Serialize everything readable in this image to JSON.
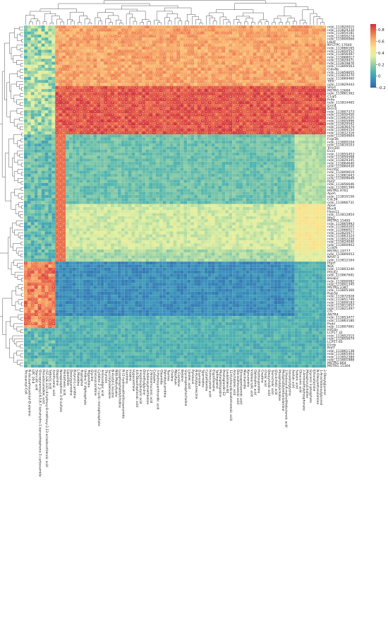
{
  "chart_data": {
    "type": "heatmap",
    "title": "",
    "xlabel": "",
    "ylabel": "",
    "colorbar": {
      "ticks": [
        0.8,
        0.6,
        0.4,
        0.2,
        0,
        -0.2
      ],
      "range": [
        -0.2,
        0.9
      ],
      "stops": [
        "#2f65a9",
        "#3c8fbe",
        "#50b4b0",
        "#9ad2a4",
        "#e3f0a0",
        "#fce28c",
        "#f9b36c",
        "#ec6f49",
        "#d12e3f"
      ]
    },
    "rows": [
      "ncbi_113820015",
      "ncbi_113829334",
      "ncbi_113854181",
      "ncbi_113850274",
      "ncbi_113800068",
      "Ltb4r",
      "NYGTPC-17640",
      "ncbi_113866165",
      "ncbi_113850557",
      "ncbi_113856497",
      "ncbi_113868017",
      "ncbi_113829471",
      "ncbi_113819876",
      "ncbi_113809563",
      "Cldn4b",
      "ncbi_113858655",
      "ncbi_113824270",
      "ncbi_113869460",
      "TIFA",
      "ncbi_113829443",
      "Sfrp1",
      "MSTRG.12694",
      "ncbi_113861362",
      "C1ql1",
      "Prlhr",
      "ncbi_113814465",
      "Grm4",
      "Dctn5",
      "ncbi_113807373",
      "ncbi_113850450",
      "ncbi_113862025",
      "ncbi_113805996",
      "ncbi_113829542",
      "ncbi_113836474",
      "ncbi_113804154",
      "ncbi_113812316",
      "ncbi_113854604",
      "Fcgr2b",
      "ncbi_113800104",
      "ncbi_113819103",
      "Trim16l",
      "Evx1",
      "ncbi_113855453",
      "ncbi_113859568",
      "ncbi_113829345",
      "ncbi_113864640",
      "ncbi_113860430",
      "Fermt2",
      "ncbi_113809619",
      "ncbi_113861643",
      "ncbi_113809649",
      "Ppt2",
      "ncbi_113856646",
      "ncbi_113801399",
      "MSTRG.9761",
      "Apeh",
      "ncbi_113810156",
      "Cdc34",
      "ncbi_113866731",
      "Apoe",
      "Muc8",
      "Fbxo11",
      "ncbi_113812854",
      "Itfg1",
      "MSTRG.15495",
      "ncbi_113865993",
      "ncbi_113804205",
      "ncbi_113866017",
      "ncbi_113825077",
      "ncbi_113863324",
      "ncbi_113852258",
      "ncbi_113824040",
      "ncbi_113800902",
      "Ccdc9",
      "MSTRG.19777",
      "ncbi_113869053",
      "NAAT-3",
      "ncbi_113812164",
      "Ptprf",
      "NLK",
      "ncbi_113803240",
      "POLK2",
      "ncbi_113867691",
      "Baiap2",
      "ncbi_113800082",
      "ncbi_113801345",
      "MSTRG.2387",
      "ncbi_113805366",
      "Rab3d",
      "ncbi_113872928",
      "ncbi_113851749",
      "ncbi_113809183",
      "ncbi_113811657",
      "ncbi_113821497",
      "Cfh",
      "AN7R4",
      "ncbi_113853477",
      "ncbi_113863180",
      "Pxdn",
      "ncbi_113807061",
      "Hif1an",
      "LCP17.32",
      "ncbi_113852515",
      "ncbi_113855674",
      "LCP17.65",
      "Il1rrb",
      "Rnf7",
      "ncbi_113861138",
      "ncbi_113865404",
      "ncbi_113852389",
      "ncbi_113801988",
      "MSTRG.864",
      "MSTRG.15304"
    ],
    "columns": [
      "Tricosanoyl-CoA",
      "N-docosahexaenoyl-D-alanine",
      "LPC 20:4",
      "Sterculic acid",
      "Glucopyranosyl-4,5,6,7-tetrahydro-1-benzothiophene-3-carboxamide",
      "Hexadecanedioic acid",
      "(5Z,12E,13Z)-4-hydroxy-8-methoxy-2,13-octadecatrienoic acid",
      "Sebacic acid",
      "Xanthurenic acid",
      "Dopamine",
      "Norepinephrine 3-O-sulfate",
      "Pantothenic acid",
      "Lipoamide",
      "Deoxyguanosine",
      "Butyryl-L-carnitine",
      "L-Histidine",
      "Tryptophol",
      "Uridine 5'-diphosphate",
      "Trigonelline",
      "Glycine",
      "Glutarylcarnitine",
      "Cytidine 2',3'-cyclic monophosphate",
      "Aminoadipic acid",
      "Thymine",
      "Succinyladenosine",
      "N-Acetyl-L-leucine",
      "N(6)-Methyllysine",
      "Lysophosphatidylcholine",
      "N-(2-hydroxyethyl)icosanamide",
      "Xanthine",
      "Inosine",
      "Hypoxanthine",
      "4,6-Dioxoheptanoic acid",
      "4-Hydroxybutyric acid",
      "Dimethylglycine",
      "S-Adenosylmethionine",
      "2-Aminomuconic acid",
      "Cytosine",
      "3-Hydroxyanthranilic acid",
      "Oleamide",
      "Palmitoylcarnitine",
      "Taurine",
      "Choline",
      "Riboflavin",
      "L-Carnitine",
      "Betaine",
      "Glycerophosphocholine",
      "Linoleic acid",
      "Pyridoxal",
      "N-Acetylputrescine",
      "Guanosine",
      "Spermidine",
      "Cystathionine",
      "Homocysteic acid",
      "Ergothioneine",
      "Sphingosine",
      "Phytosphingosine",
      "Prostaglandin E2",
      "Leukotriene B4",
      "12-Hydroxyeicosatetraenoic acid",
      "Arachidonic acid",
      "Docosahexaenoic acid",
      "Eicosapentaenoic acid",
      "Niacinamide",
      "Kynurenine",
      "Indoleacrylic acid",
      "Ophthalmic acid",
      "Hydroxyproline",
      "Creatine",
      "Cholic acid",
      "Deoxycholic acid",
      "Taurocholic acid",
      "Glycocholic acid",
      "Phosphatidylcholine",
      "Phosphatidylethanolamine",
      "2-Hydroxy-4-methylthiobutanoic acid",
      "Isovalerylglycine",
      "Azelaic acid",
      "Suberic acid",
      "Citraconic acid",
      "2-Aminoethylphosphonate",
      "Phosphorylcholine",
      "Glycerol 3-phosphate",
      "Ethanolamine",
      "N-Oleoylethanolamine",
      "1-Arachidonoylglycerol",
      "2-Oleoylglycerol"
    ]
  }
}
